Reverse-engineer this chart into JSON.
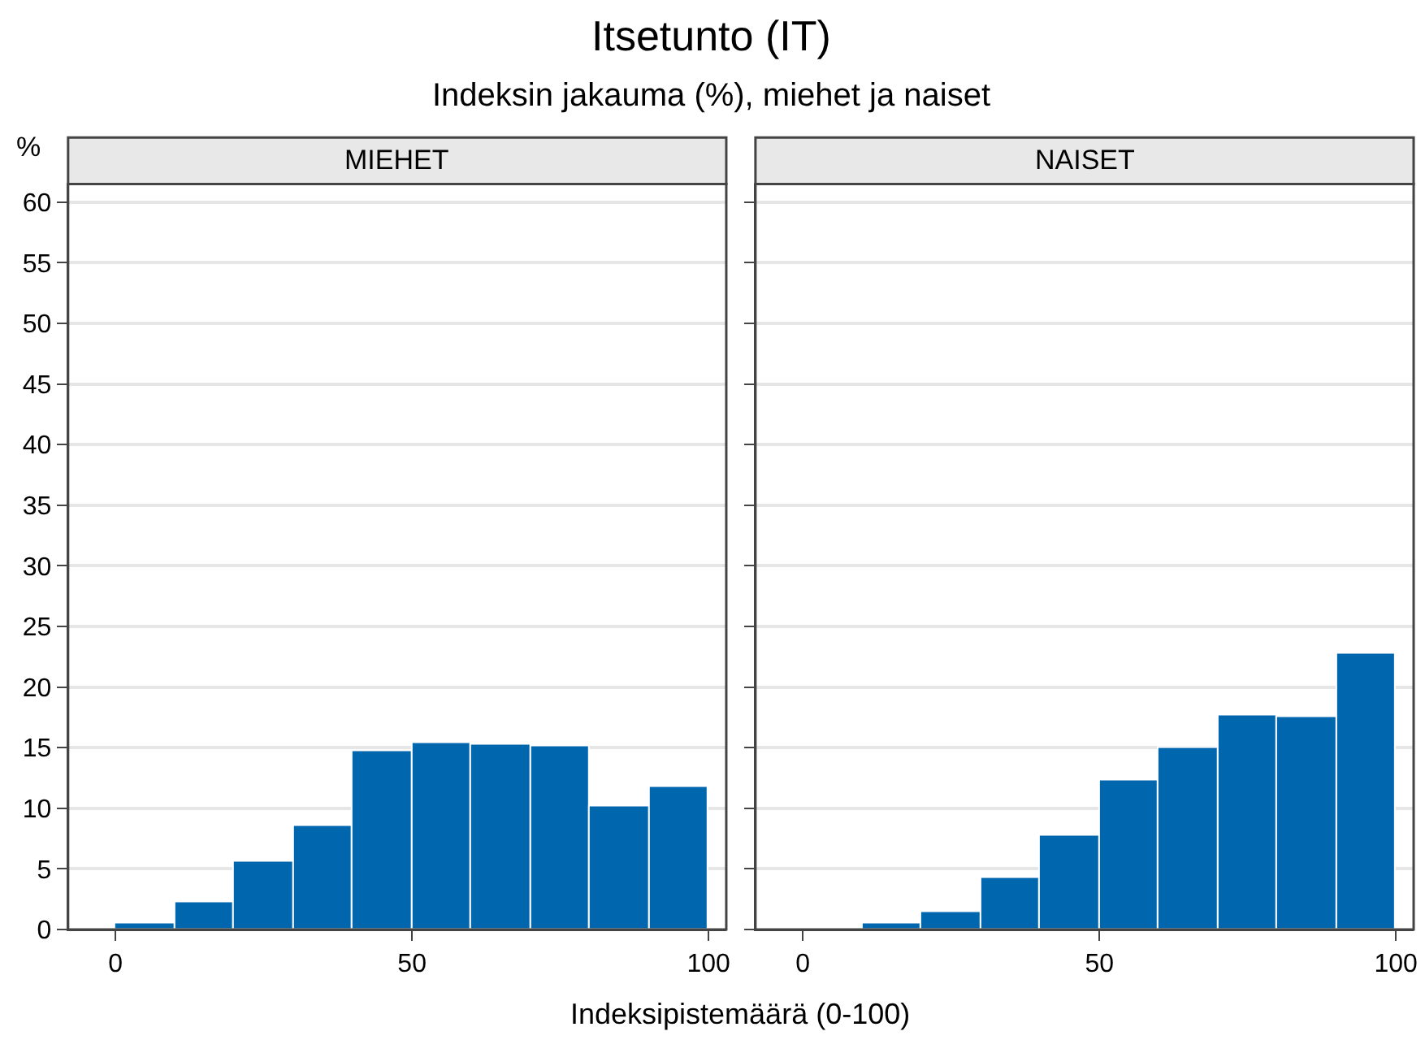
{
  "chart_data": [
    {
      "type": "histogram",
      "title": "MIEHET",
      "ylabel": "%",
      "xlabel": "Indeksipistemäärä (0-100)",
      "annotations": [
        "Itsetunto (IT)",
        "Indeksin jakauma (%), miehet ja naiset"
      ],
      "bins": [
        0,
        10,
        20,
        30,
        40,
        50,
        60,
        70,
        80,
        90,
        100
      ],
      "values": [
        0.5,
        2.2,
        5.6,
        8.6,
        14.7,
        15.4,
        15.2,
        15.1,
        10.2,
        11.8
      ],
      "color": "#0067ae",
      "xlim": [
        -8,
        103
      ],
      "xticks": [
        0,
        50,
        100
      ],
      "ylim": [
        0,
        61.5
      ],
      "yticks": [
        0,
        5,
        10,
        15,
        20,
        25,
        30,
        35,
        40,
        45,
        50,
        55,
        60
      ],
      "grid": "y"
    },
    {
      "type": "histogram",
      "title": "NAISET",
      "bins": [
        0,
        10,
        20,
        30,
        40,
        50,
        60,
        70,
        80,
        90,
        100
      ],
      "values": [
        0,
        0.5,
        1.5,
        4.2,
        7.7,
        12.3,
        15.0,
        17.7,
        17.6,
        22.7
      ],
      "color": "#0067ae",
      "xlim": [
        -8,
        103
      ],
      "xticks": [
        0,
        50,
        100
      ],
      "ylim": [
        0,
        61.5
      ],
      "yticks": [
        0,
        5,
        10,
        15,
        20,
        25,
        30,
        35,
        40,
        45,
        50,
        55,
        60
      ],
      "grid": "y",
      "tick_labels": "x"
    }
  ]
}
